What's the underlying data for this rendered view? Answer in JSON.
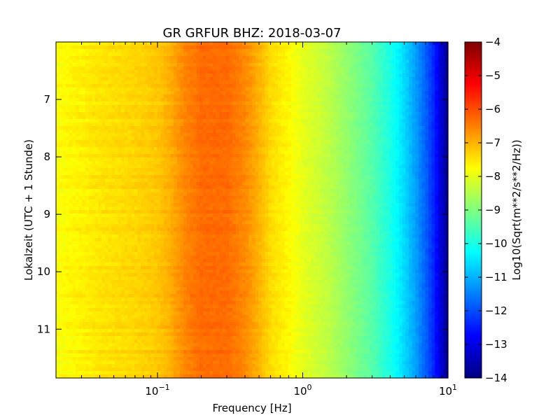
{
  "chart_data": {
    "type": "heatmap",
    "title": "GR GRFUR BHZ: 2018-03-07",
    "xlabel": "Frequency [Hz]",
    "ylabel": "Lokalzeit (UTC + 1 Stunde)",
    "x_scale": "log",
    "xlim": [
      0.02,
      10
    ],
    "x_ticks": [
      {
        "value": 0.1,
        "base": "10",
        "exp": "−1"
      },
      {
        "value": 1,
        "base": "10",
        "exp": "0"
      },
      {
        "value": 10,
        "base": "10",
        "exp": "1"
      }
    ],
    "ylim": [
      6.0,
      11.85
    ],
    "y_inverted": true,
    "y_ticks": [
      7,
      8,
      9,
      10,
      11
    ],
    "colorbar": {
      "label": "Log10(Sqrt(m**2/s**2/Hz))",
      "range": [
        -14,
        -4
      ],
      "ticks": [
        -4,
        -5,
        -6,
        -7,
        -8,
        -9,
        -10,
        -11,
        -12,
        -13,
        -14
      ],
      "colormap": "jet"
    },
    "spectrum_profile": {
      "frequency_hz": [
        0.02,
        0.04,
        0.06,
        0.08,
        0.1,
        0.12,
        0.15,
        0.2,
        0.3,
        0.4,
        0.5,
        0.6,
        0.8,
        1.0,
        1.5,
        2.0,
        3.0,
        4.0,
        5.0,
        6.0,
        7.0,
        8.0,
        9.0,
        10.0
      ],
      "log10_amplitude": [
        -7.8,
        -7.5,
        -7.4,
        -7.3,
        -7.2,
        -7.0,
        -6.6,
        -6.3,
        -6.3,
        -6.6,
        -7.0,
        -7.4,
        -7.7,
        -8.0,
        -8.4,
        -8.8,
        -9.4,
        -10.0,
        -10.6,
        -11.2,
        -11.8,
        -12.4,
        -13.2,
        -13.9
      ]
    }
  }
}
